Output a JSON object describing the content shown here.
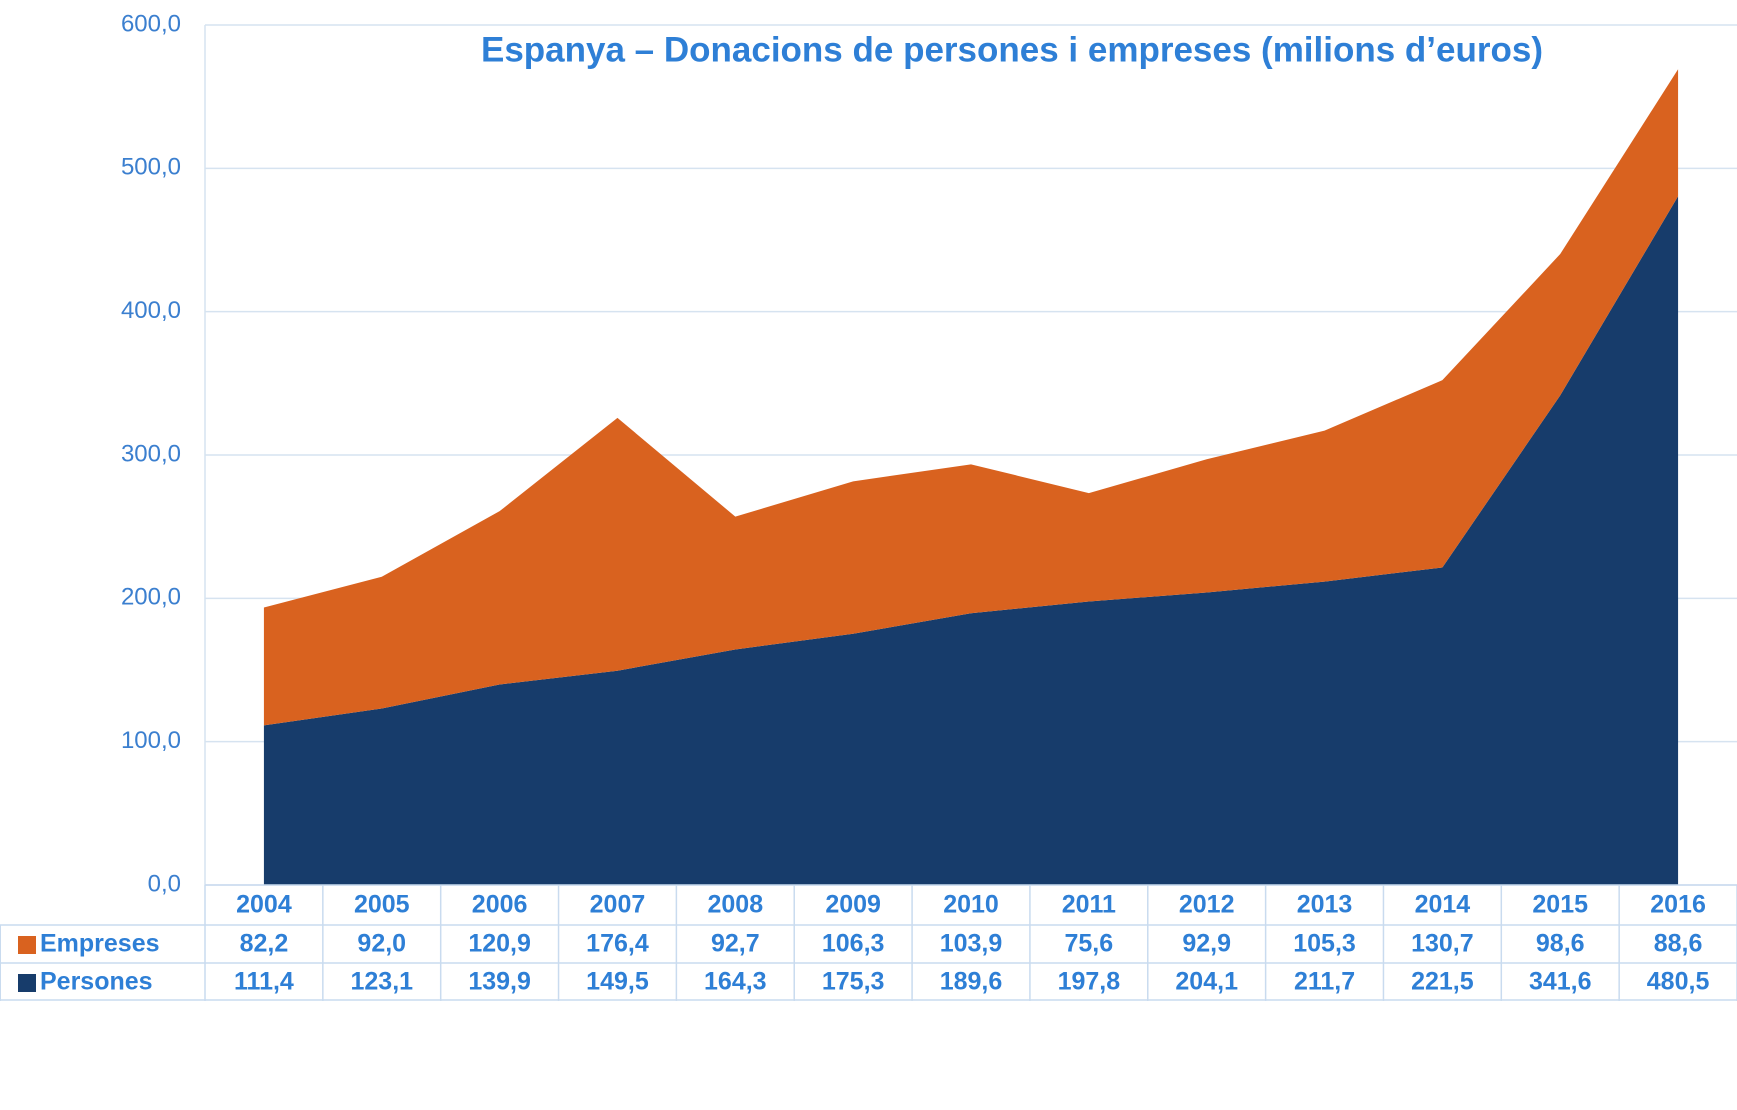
{
  "chart_data": {
    "type": "stacked_area",
    "title": "Espanya – Donacions de persones i empreses (milions d’euros)",
    "categories": [
      "2004",
      "2005",
      "2006",
      "2007",
      "2008",
      "2009",
      "2010",
      "2011",
      "2012",
      "2013",
      "2014",
      "2015",
      "2016"
    ],
    "series": [
      {
        "name": "Persones",
        "color": "#173c6b",
        "values": [
          111.4,
          123.1,
          139.9,
          149.5,
          164.3,
          175.3,
          189.6,
          197.8,
          204.1,
          211.7,
          221.5,
          341.6,
          480.5
        ],
        "value_labels": [
          "111,4",
          "123,1",
          "139,9",
          "149,5",
          "164,3",
          "175,3",
          "189,6",
          "197,8",
          "204,1",
          "211,7",
          "221,5",
          "341,6",
          "480,5"
        ]
      },
      {
        "name": "Empreses",
        "color": "#d9621f",
        "values": [
          82.2,
          92.0,
          120.9,
          176.4,
          92.7,
          106.3,
          103.9,
          75.6,
          92.9,
          105.3,
          130.7,
          98.6,
          88.6
        ],
        "value_labels": [
          "82,2",
          "92,0",
          "120,9",
          "176,4",
          "92,7",
          "106,3",
          "103,9",
          "75,6",
          "92,9",
          "105,3",
          "130,7",
          "98,6",
          "88,6"
        ]
      }
    ],
    "ylim": [
      0,
      600
    ],
    "yticks": [
      {
        "value": 0,
        "label": "0,0"
      },
      {
        "value": 100,
        "label": "100,0"
      },
      {
        "value": 200,
        "label": "200,0"
      },
      {
        "value": 300,
        "label": "300,0"
      },
      {
        "value": 400,
        "label": "400,0"
      },
      {
        "value": 500,
        "label": "500,0"
      },
      {
        "value": 600,
        "label": "600,0"
      }
    ],
    "grid": true
  }
}
